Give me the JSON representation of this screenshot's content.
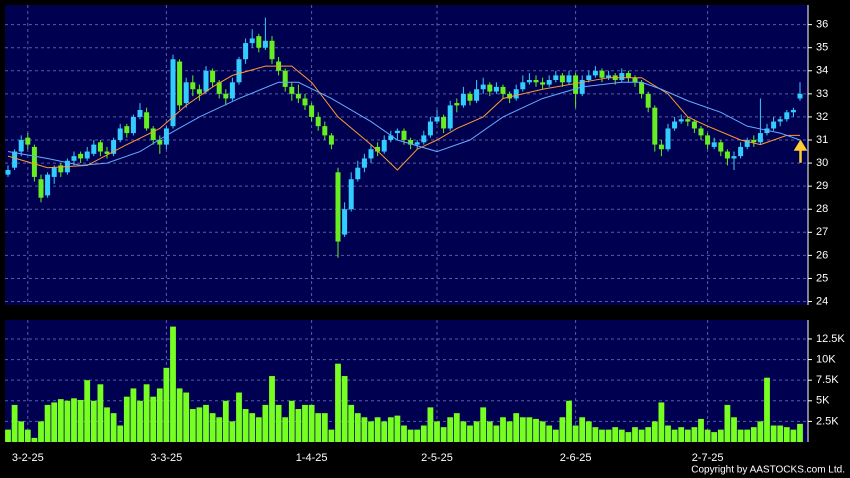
{
  "chart_data": {
    "type": "candlestick",
    "categories": [
      null,
      null,
      null,
      "3-2-25",
      null,
      null,
      null,
      null,
      null,
      null,
      null,
      null,
      null,
      null,
      null,
      null,
      null,
      null,
      null,
      null,
      null,
      null,
      null,
      null,
      "3-3-25",
      null,
      null,
      null,
      null,
      null,
      null,
      null,
      null,
      null,
      null,
      null,
      null,
      null,
      null,
      null,
      null,
      null,
      null,
      null,
      null,
      null,
      "1-4-25",
      null,
      null,
      null,
      null,
      null,
      null,
      null,
      null,
      null,
      null,
      null,
      null,
      null,
      null,
      null,
      null,
      null,
      null,
      "2-5-25",
      null,
      null,
      null,
      null,
      null,
      null,
      null,
      null,
      null,
      null,
      null,
      null,
      null,
      null,
      null,
      null,
      null,
      null,
      null,
      null,
      "2-6-25",
      null,
      null,
      null,
      null,
      null,
      null,
      null,
      null,
      null,
      null,
      null,
      null,
      null,
      null,
      null,
      null,
      null,
      null,
      null,
      "2-7-25",
      null,
      null,
      null,
      null,
      null,
      null,
      null,
      null,
      null,
      null,
      null,
      null,
      null,
      null
    ],
    "ohlc": [
      [
        29.5,
        29.9,
        29.4,
        29.7
      ],
      [
        29.8,
        30.6,
        29.7,
        30.5
      ],
      [
        30.5,
        31.2,
        30.3,
        31.0
      ],
      [
        31.1,
        31.3,
        30.6,
        30.8
      ],
      [
        30.7,
        30.8,
        29.2,
        29.4
      ],
      [
        29.3,
        29.5,
        28.3,
        28.5
      ],
      [
        28.6,
        29.6,
        28.5,
        29.5
      ],
      [
        29.4,
        29.9,
        29.1,
        29.8
      ],
      [
        29.9,
        30.0,
        29.4,
        29.6
      ],
      [
        29.6,
        30.2,
        29.5,
        30.1
      ],
      [
        30.1,
        30.5,
        29.9,
        30.3
      ],
      [
        30.4,
        30.5,
        30.0,
        30.2
      ],
      [
        30.2,
        30.7,
        30.1,
        30.5
      ],
      [
        30.4,
        31.0,
        30.3,
        30.8
      ],
      [
        30.9,
        31.0,
        30.3,
        30.5
      ],
      [
        30.5,
        30.7,
        30.2,
        30.4
      ],
      [
        30.4,
        31.1,
        30.3,
        31.0
      ],
      [
        31.0,
        31.7,
        30.9,
        31.5
      ],
      [
        31.6,
        31.7,
        31.1,
        31.3
      ],
      [
        31.3,
        32.1,
        31.2,
        32.0
      ],
      [
        32.0,
        32.6,
        31.9,
        32.3
      ],
      [
        32.2,
        32.4,
        31.4,
        31.5
      ],
      [
        31.5,
        31.6,
        30.8,
        31.0
      ],
      [
        31.0,
        31.2,
        30.4,
        30.8
      ],
      [
        30.8,
        31.6,
        30.6,
        31.5
      ],
      [
        31.6,
        34.7,
        31.5,
        34.5
      ],
      [
        34.4,
        34.5,
        32.3,
        32.5
      ],
      [
        32.6,
        33.7,
        32.4,
        33.5
      ],
      [
        33.5,
        33.8,
        32.9,
        33.2
      ],
      [
        33.2,
        33.4,
        32.7,
        33.0
      ],
      [
        33.1,
        34.2,
        33.0,
        34.0
      ],
      [
        34.0,
        34.1,
        33.3,
        33.5
      ],
      [
        33.5,
        33.6,
        32.8,
        33.0
      ],
      [
        33.0,
        33.2,
        32.5,
        32.8
      ],
      [
        32.8,
        33.7,
        32.7,
        33.5
      ],
      [
        33.5,
        34.6,
        33.4,
        34.5
      ],
      [
        34.5,
        35.4,
        34.3,
        35.2
      ],
      [
        35.2,
        35.8,
        35.0,
        35.4
      ],
      [
        35.5,
        35.6,
        34.8,
        35.0
      ],
      [
        35.0,
        36.3,
        34.9,
        35.3
      ],
      [
        35.3,
        35.5,
        34.3,
        34.5
      ],
      [
        34.4,
        34.6,
        33.8,
        34.0
      ],
      [
        34.0,
        34.1,
        33.1,
        33.3
      ],
      [
        33.3,
        33.5,
        32.7,
        33.0
      ],
      [
        33.0,
        33.4,
        32.6,
        32.8
      ],
      [
        32.8,
        33.0,
        32.3,
        32.5
      ],
      [
        32.5,
        32.6,
        31.8,
        32.0
      ],
      [
        32.0,
        32.2,
        31.4,
        31.6
      ],
      [
        31.6,
        31.8,
        31.0,
        31.2
      ],
      [
        31.2,
        31.3,
        30.6,
        30.8
      ],
      [
        29.6,
        29.8,
        25.9,
        26.6
      ],
      [
        26.9,
        28.3,
        26.8,
        28.0
      ],
      [
        28.0,
        29.6,
        27.9,
        29.3
      ],
      [
        29.3,
        30.1,
        29.2,
        29.8
      ],
      [
        29.8,
        30.4,
        29.6,
        30.2
      ],
      [
        30.2,
        30.8,
        30.0,
        30.6
      ],
      [
        30.7,
        30.9,
        30.3,
        30.5
      ],
      [
        30.5,
        31.2,
        30.4,
        31.0
      ],
      [
        31.0,
        31.4,
        30.9,
        31.2
      ],
      [
        31.3,
        31.5,
        31.0,
        31.4
      ],
      [
        31.4,
        31.5,
        30.8,
        31.0
      ],
      [
        31.0,
        31.1,
        30.6,
        30.8
      ],
      [
        30.8,
        31.0,
        30.6,
        30.9
      ],
      [
        30.9,
        31.4,
        30.8,
        31.2
      ],
      [
        31.2,
        32.0,
        31.1,
        31.8
      ],
      [
        31.8,
        32.3,
        31.7,
        32.0
      ],
      [
        32.0,
        32.1,
        31.3,
        31.5
      ],
      [
        31.5,
        32.7,
        31.4,
        32.5
      ],
      [
        32.6,
        32.8,
        32.2,
        32.5
      ],
      [
        32.5,
        33.3,
        32.4,
        33.0
      ],
      [
        33.0,
        33.1,
        32.5,
        32.7
      ],
      [
        32.7,
        33.6,
        32.6,
        33.2
      ],
      [
        33.2,
        33.7,
        33.0,
        33.4
      ],
      [
        33.4,
        33.5,
        32.9,
        33.1
      ],
      [
        33.1,
        33.5,
        33.0,
        33.3
      ],
      [
        33.3,
        33.4,
        32.8,
        33.0
      ],
      [
        33.0,
        33.1,
        32.6,
        32.8
      ],
      [
        32.8,
        33.4,
        32.7,
        33.2
      ],
      [
        33.2,
        33.8,
        33.1,
        33.5
      ],
      [
        33.5,
        33.9,
        33.4,
        33.6
      ],
      [
        33.6,
        33.8,
        33.3,
        33.5
      ],
      [
        33.5,
        33.7,
        33.2,
        33.4
      ],
      [
        33.4,
        33.8,
        33.3,
        33.6
      ],
      [
        33.6,
        34.0,
        33.5,
        33.8
      ],
      [
        33.8,
        33.9,
        33.3,
        33.5
      ],
      [
        33.5,
        34.0,
        33.4,
        33.8
      ],
      [
        33.8,
        33.9,
        32.4,
        33.0
      ],
      [
        33.0,
        33.8,
        32.9,
        33.6
      ],
      [
        33.6,
        34.0,
        33.5,
        33.8
      ],
      [
        33.8,
        34.2,
        33.7,
        34.0
      ],
      [
        34.0,
        34.1,
        33.5,
        33.7
      ],
      [
        33.7,
        34.0,
        33.6,
        33.8
      ],
      [
        33.8,
        33.9,
        33.4,
        33.6
      ],
      [
        33.6,
        34.1,
        33.5,
        33.9
      ],
      [
        33.9,
        34.0,
        33.5,
        33.7
      ],
      [
        33.7,
        33.8,
        33.3,
        33.5
      ],
      [
        33.5,
        33.6,
        32.8,
        33.0
      ],
      [
        33.0,
        33.1,
        32.2,
        32.4
      ],
      [
        32.4,
        32.5,
        30.5,
        30.8
      ],
      [
        30.8,
        31.0,
        30.3,
        30.6
      ],
      [
        30.6,
        31.7,
        30.5,
        31.5
      ],
      [
        31.5,
        32.0,
        31.4,
        31.8
      ],
      [
        31.8,
        32.1,
        31.7,
        31.9
      ],
      [
        31.9,
        32.0,
        31.6,
        31.8
      ],
      [
        31.8,
        31.9,
        31.3,
        31.5
      ],
      [
        31.5,
        31.6,
        31.0,
        31.2
      ],
      [
        31.2,
        31.3,
        30.6,
        30.8
      ],
      [
        30.7,
        31.1,
        30.6,
        30.9
      ],
      [
        30.9,
        31.0,
        30.3,
        30.5
      ],
      [
        30.5,
        30.6,
        29.9,
        30.2
      ],
      [
        30.2,
        30.5,
        29.7,
        30.3
      ],
      [
        30.3,
        30.9,
        30.2,
        30.7
      ],
      [
        30.7,
        31.1,
        30.6,
        31.0
      ],
      [
        31.0,
        31.2,
        30.7,
        30.9
      ],
      [
        30.9,
        32.8,
        30.8,
        31.3
      ],
      [
        31.3,
        31.7,
        31.2,
        31.5
      ],
      [
        31.5,
        32.0,
        31.4,
        31.8
      ],
      [
        31.8,
        32.0,
        31.6,
        31.9
      ],
      [
        31.9,
        32.3,
        31.8,
        32.2
      ],
      [
        32.2,
        32.4,
        32.0,
        32.3
      ],
      [
        32.8,
        33.5,
        32.7,
        33.0
      ]
    ],
    "up_color": "#33ccff",
    "down_color": "#66ee22",
    "ylim": [
      23.85,
      36.85
    ],
    "yticks": [
      24,
      25,
      26,
      27,
      28,
      29,
      30,
      31,
      32,
      33,
      34,
      35,
      36
    ],
    "grid": true,
    "ma": [
      {
        "color": "#ff9933",
        "x": [
          0,
          6,
          12,
          18,
          23,
          27,
          31,
          34,
          39,
          43,
          46,
          50,
          55,
          59,
          62,
          65,
          68,
          72,
          75,
          81,
          87,
          91,
          96,
          100,
          103,
          106,
          111,
          114,
          118,
          120
        ],
        "values": [
          30.3,
          29.8,
          29.9,
          30.8,
          31.5,
          32.5,
          33.3,
          33.8,
          34.2,
          34.2,
          33.5,
          32,
          30.8,
          29.7,
          30.6,
          31,
          31.5,
          32,
          32.8,
          33.2,
          33.5,
          33.7,
          33.7,
          33,
          32,
          31.6,
          31,
          30.8,
          31.2,
          31.2
        ]
      },
      {
        "color": "#66aaff",
        "x": [
          0,
          6,
          11,
          15,
          20,
          24,
          29,
          35,
          41,
          44,
          49,
          55,
          59,
          65,
          70,
          75,
          81,
          87,
          93,
          96,
          99,
          103,
          108,
          112,
          117,
          120
        ],
        "values": [
          30.5,
          30.2,
          29.9,
          30,
          30.5,
          31.2,
          32,
          32.8,
          33.5,
          33.5,
          32.8,
          31.8,
          31,
          30.5,
          31,
          32,
          32.8,
          33.3,
          33.5,
          33.5,
          33.2,
          32.7,
          32.2,
          31.6,
          31.3,
          31
        ]
      }
    ],
    "volume": {
      "color": "#77ff22",
      "values": [
        1.5,
        4.5,
        2.5,
        1.5,
        0.5,
        2.5,
        4.5,
        4.8,
        5.2,
        5,
        5.3,
        5.1,
        7.5,
        5,
        7,
        4.2,
        3.5,
        2,
        5.5,
        6.5,
        5,
        7,
        5.5,
        6.5,
        9,
        14,
        6.5,
        6,
        4,
        4.2,
        4.5,
        3.5,
        3,
        5,
        2.5,
        6,
        4,
        3.5,
        3,
        4.5,
        8,
        4.5,
        3,
        5,
        4,
        4.5,
        4.5,
        3.5,
        3.5,
        1.5,
        9.5,
        8,
        4.5,
        3.5,
        3,
        2.5,
        3,
        2.5,
        3,
        3.2,
        2,
        1.5,
        1.5,
        2,
        4.2,
        2.5,
        1.8,
        3,
        3.5,
        2.5,
        2,
        2.5,
        4.2,
        2.5,
        2,
        3,
        2.5,
        3.5,
        3,
        3,
        2.8,
        2.5,
        2,
        1.5,
        3,
        5,
        2,
        3,
        2.5,
        1.8,
        1.5,
        1.5,
        1.8,
        1.5,
        1.2,
        1.8,
        1.5,
        1.8,
        2.5,
        4.8,
        2,
        1.5,
        1.8,
        1.5,
        1.8,
        2.8,
        1.5,
        1.2,
        1.5,
        4.5,
        3,
        1.5,
        1.5,
        1.8,
        2.5,
        7.8,
        2,
        2,
        1.8,
        1.5,
        2.2
      ],
      "ylim": [
        0,
        14.8
      ],
      "yticks": [
        {
          "value": 2.5,
          "label": "2.5K"
        },
        {
          "value": 5,
          "label": "5K"
        },
        {
          "value": 7.5,
          "label": "7.5K"
        },
        {
          "value": 10,
          "label": "10K"
        },
        {
          "value": 12.5,
          "label": "12.5K"
        }
      ]
    },
    "copyright": "Copyright by AASTOCKS.com Ltd."
  }
}
